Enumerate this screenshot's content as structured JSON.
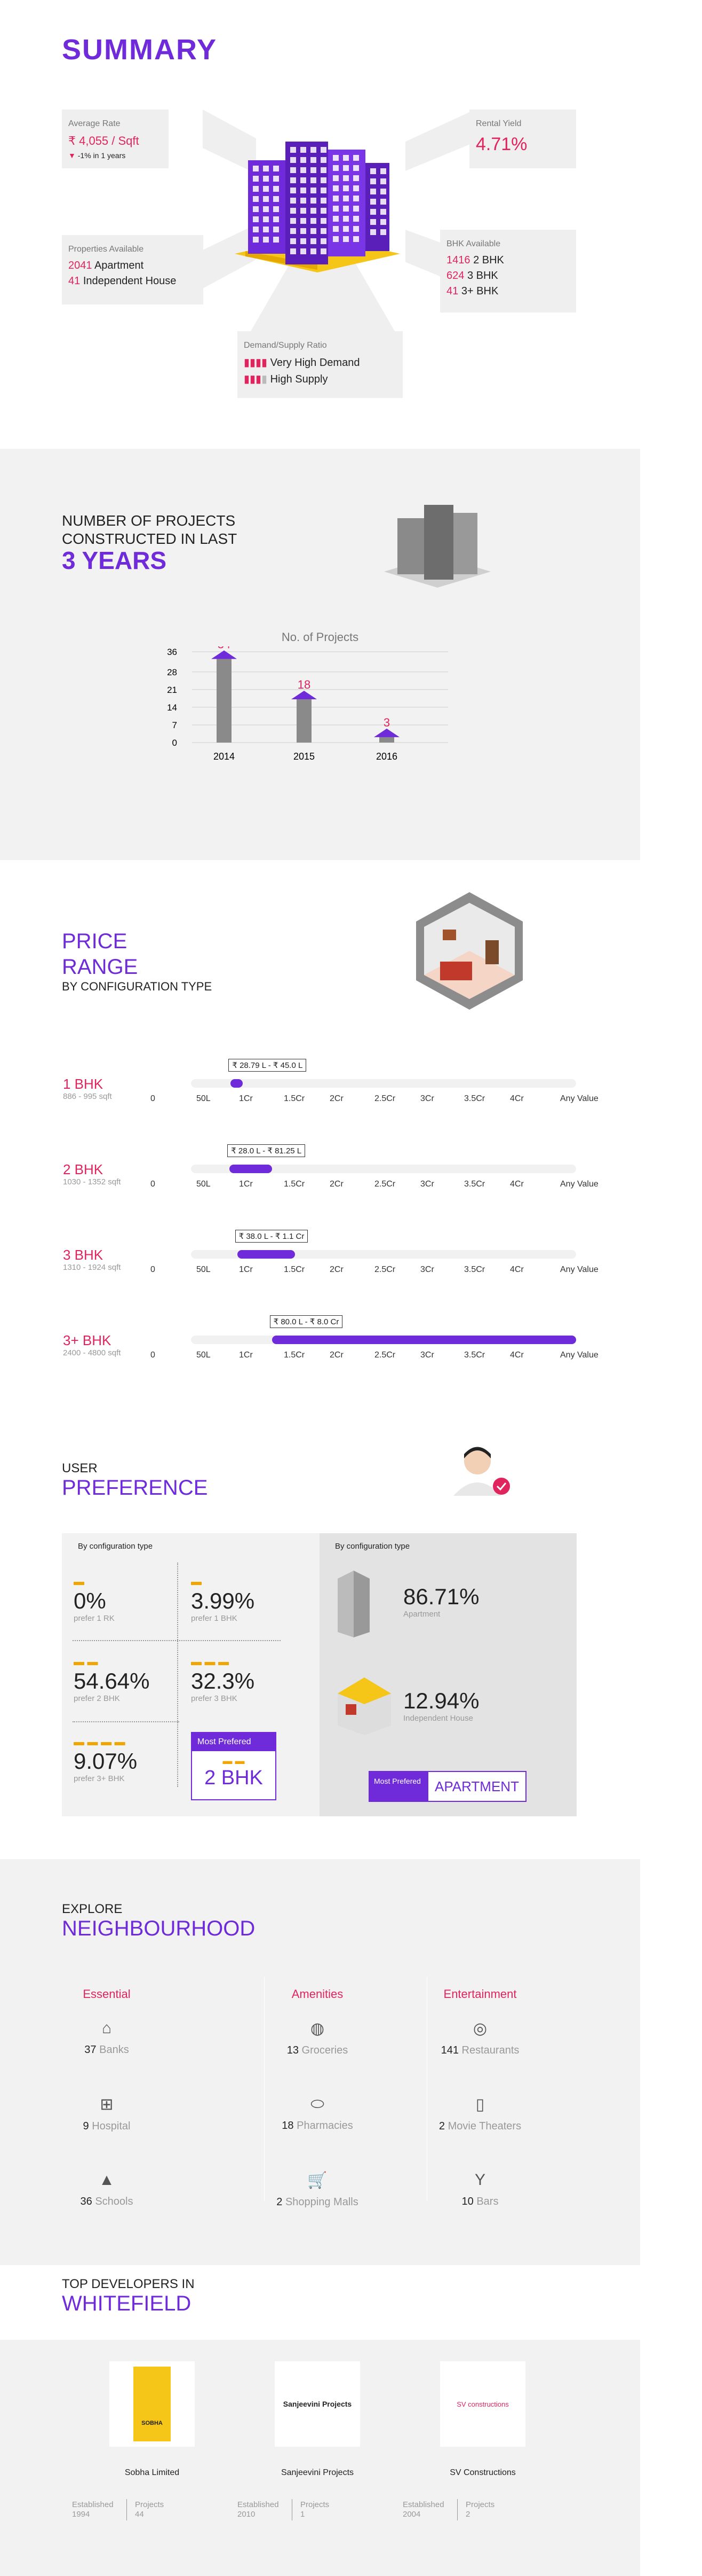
{
  "summary": {
    "title": "SUMMARY",
    "average_rate": {
      "label": "Average Rate",
      "value": "₹ 4,055 / Sqft",
      "change": "-1% in 1 years"
    },
    "rental_yield": {
      "label": "Rental Yield",
      "value": "4.71%"
    },
    "properties": {
      "label": "Properties Available",
      "rows": [
        {
          "count": "2041",
          "type": "Apartment"
        },
        {
          "count": "41",
          "type": "Independent House"
        }
      ]
    },
    "bhk": {
      "label": "BHK Available",
      "rows": [
        {
          "count": "1416",
          "type": "2 BHK"
        },
        {
          "count": "624",
          "type": "3 BHK"
        },
        {
          "count": "41",
          "type": "3+ BHK"
        }
      ]
    },
    "demand": {
      "label": "Demand/Supply Ratio",
      "rows": [
        "Very High Demand",
        "High Supply"
      ]
    }
  },
  "projects": {
    "line1": "NUMBER OF PROJECTS",
    "line2": "CONSTRUCTED IN LAST",
    "highlight": "3 YEARS",
    "chart_title": "No. of Projects"
  },
  "chart_data": {
    "type": "bar",
    "title": "No. of Projects",
    "categories": [
      "2014",
      "2015",
      "2016"
    ],
    "values": [
      34,
      18,
      3
    ],
    "yticks": [
      0,
      7,
      14,
      21,
      28,
      36
    ],
    "ylim": [
      0,
      36
    ],
    "grid": true
  },
  "price": {
    "title1": "PRICE",
    "title2": "RANGE",
    "subtitle": "BY CONFIGURATION TYPE",
    "ticks": [
      "0",
      "50L",
      "1Cr",
      "1.5Cr",
      "2Cr",
      "2.5Cr",
      "3Cr",
      "3.5Cr",
      "4Cr",
      "Any Value"
    ],
    "rows": [
      {
        "label": "1 BHK",
        "sub": "886 - 995 sqft",
        "range": "₹ 28.79 L - ₹ 45.0 L",
        "start": 0.103,
        "end": 0.135
      },
      {
        "label": "2 BHK",
        "sub": "1030 - 1352 sqft",
        "range": "₹ 28.0 L - ₹ 81.25 L",
        "start": 0.1,
        "end": 0.21
      },
      {
        "label": "3 BHK",
        "sub": "1310 - 1924 sqft",
        "range": "₹ 38.0 L - ₹ 1.1 Cr",
        "start": 0.12,
        "end": 0.27
      },
      {
        "label": "3+ BHK",
        "sub": "2400 - 4800 sqft",
        "range": "₹ 80.0 L - ₹ 8.0 Cr",
        "start": 0.21,
        "end": 1.0
      }
    ]
  },
  "preference": {
    "line1": "USER",
    "line2": "PREFERENCE",
    "left_head": "By configuration type",
    "right_head": "By configuration type",
    "items": [
      {
        "value": "0%",
        "sub": "prefer 1 RK"
      },
      {
        "value": "3.99%",
        "sub": "prefer 1 BHK"
      },
      {
        "value": "54.64%",
        "sub": "prefer 2 BHK"
      },
      {
        "value": "32.3%",
        "sub": "prefer 3 BHK"
      },
      {
        "value": "9.07%",
        "sub": "prefer 3+ BHK"
      }
    ],
    "most_preferred_label": "Most Prefered",
    "most_preferred_value": "2 BHK",
    "types": [
      {
        "value": "86.71%",
        "sub": "Apartment"
      },
      {
        "value": "12.94%",
        "sub": "Independent House"
      }
    ],
    "type_most_label": "Most Prefered",
    "type_most_value": "APARTMENT"
  },
  "neighbourhood": {
    "line1": "EXPLORE",
    "line2": "NEIGHBOURHOOD",
    "columns": [
      {
        "title": "Essential",
        "items": [
          {
            "icon": "bank-icon",
            "count": "37",
            "name": "Banks"
          },
          {
            "icon": "hospital-icon",
            "count": "9",
            "name": "Hospital"
          },
          {
            "icon": "school-icon",
            "count": "36",
            "name": "Schools"
          }
        ]
      },
      {
        "title": "Amenities",
        "items": [
          {
            "icon": "grocery-icon",
            "count": "13",
            "name": "Groceries"
          },
          {
            "icon": "pill-icon",
            "count": "18",
            "name": "Pharmacies"
          },
          {
            "icon": "cart-icon",
            "count": "2",
            "name": "Shopping Malls"
          }
        ]
      },
      {
        "title": "Entertainment",
        "items": [
          {
            "icon": "restaurant-icon",
            "count": "141",
            "name": "Restaurants"
          },
          {
            "icon": "movie-icon",
            "count": "2",
            "name": "Movie Theaters"
          },
          {
            "icon": "bar-icon",
            "count": "10",
            "name": "Bars"
          }
        ]
      }
    ]
  },
  "developers": {
    "line1": "TOP DEVELOPERS IN",
    "line2": "WHITEFIELD",
    "items": [
      {
        "name": "Sobha Limited",
        "logo_text": "SOBHA",
        "est_label": "Established",
        "est": "1994",
        "proj_label": "Projects",
        "proj": "44"
      },
      {
        "name": "Sanjeevini Projects",
        "logo_text": "Sanjeevini Projects",
        "est_label": "Established",
        "est": "2010",
        "proj_label": "Projects",
        "proj": "1"
      },
      {
        "name": "SV Constructions",
        "logo_text": "SV constructions",
        "est_label": "Established",
        "est": "2004",
        "proj_label": "Projects",
        "proj": "2"
      }
    ]
  }
}
